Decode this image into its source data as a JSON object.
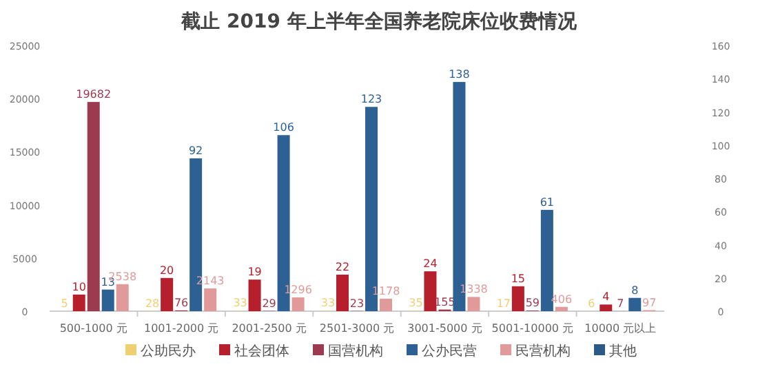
{
  "chart_data": {
    "type": "bar",
    "title": "截止 2019 年上半年全国养老院床位收费情况",
    "categories": [
      "500-1000 元",
      "1001-2000 元",
      "2001-2500 元",
      "2501-3000 元",
      "3001-5000 元",
      "5001-10000 元",
      "10000 元以上"
    ],
    "series": [
      {
        "name": "公助民办",
        "color": "#f0cf72",
        "values": [
          5,
          28,
          33,
          33,
          35,
          17,
          6
        ]
      },
      {
        "name": "社会团体",
        "color": "#b5202c",
        "axis": "y2",
        "values": [
          10,
          20,
          19,
          22,
          24,
          15,
          4
        ]
      },
      {
        "name": "国营机构",
        "color": "#9c3b4f",
        "values": [
          19682,
          76,
          29,
          23,
          155,
          59,
          7
        ]
      },
      {
        "name": "公办民营",
        "color": "#2d6194",
        "axis": "y2",
        "values": [
          13,
          92,
          106,
          123,
          138,
          61,
          8
        ]
      },
      {
        "name": "民营机构",
        "color": "#e09a9a",
        "values": [
          2538,
          2143,
          1296,
          1178,
          1338,
          406,
          97
        ]
      },
      {
        "name": "其他",
        "color": "#2b5a88",
        "values": [
          null,
          null,
          null,
          null,
          null,
          null,
          null
        ]
      }
    ],
    "ylim": [
      0,
      25000
    ],
    "yticks": [
      0,
      5000,
      10000,
      15000,
      20000,
      25000
    ],
    "y2lim": [
      0,
      160
    ],
    "y2ticks": [
      0,
      20,
      40,
      60,
      80,
      100,
      120,
      140,
      160
    ],
    "data_labels": true,
    "legend": "bottom",
    "grid": false
  }
}
